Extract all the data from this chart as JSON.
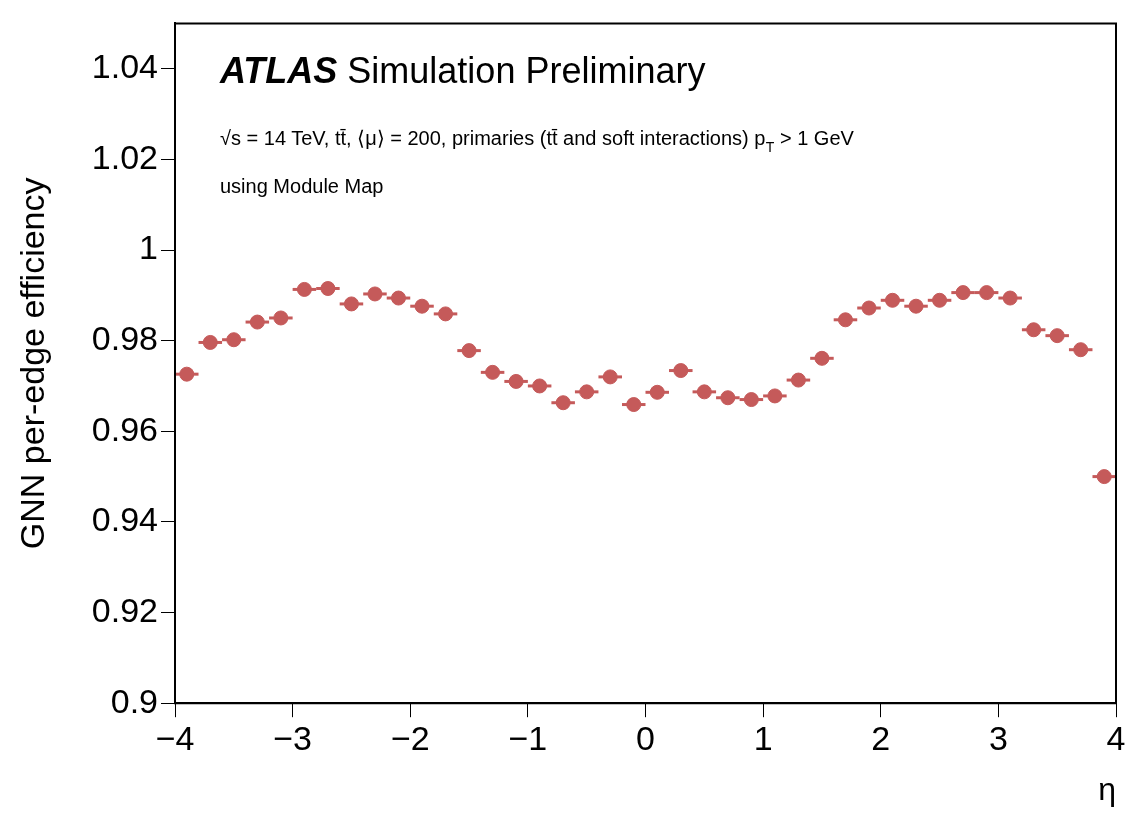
{
  "chart_data": {
    "type": "scatter",
    "title": "ATLAS",
    "subtitle": "Simulation Preliminary",
    "annotations": [
      "√s = 14 TeV, tt̄, ⟨μ⟩ = 200, primaries (tt̄ and soft interactions) p$_{T}$ > 1 GeV",
      "using Module Map"
    ],
    "xlabel": "η",
    "ylabel": "GNN per-edge efficiency",
    "x": [
      -3.9,
      -3.7,
      -3.5,
      -3.3,
      -3.1,
      -2.9,
      -2.7,
      -2.5,
      -2.3,
      -2.1,
      -1.9,
      -1.7,
      -1.5,
      -1.3,
      -1.1,
      -0.9,
      -0.7,
      -0.5,
      -0.3,
      -0.1,
      0.1,
      0.3,
      0.5,
      0.7,
      0.9,
      1.1,
      1.3,
      1.5,
      1.7,
      1.9,
      2.1,
      2.3,
      2.5,
      2.7,
      2.9,
      3.1,
      3.3,
      3.5,
      3.7,
      3.9
    ],
    "series": [
      {
        "color": "#c55a5a",
        "values": [
          0.9726,
          0.9796,
          0.9802,
          0.9841,
          0.985,
          0.9913,
          0.9915,
          0.9881,
          0.9903,
          0.9894,
          0.9876,
          0.9859,
          0.9778,
          0.973,
          0.971,
          0.97,
          0.9663,
          0.9687,
          0.972,
          0.9659,
          0.9686,
          0.9734,
          0.9687,
          0.9674,
          0.967,
          0.9678,
          0.9713,
          0.9761,
          0.9846,
          0.9872,
          0.9889,
          0.9876,
          0.9889,
          0.9906,
          0.9906,
          0.9894,
          0.9824,
          0.9811,
          0.978,
          0.95
        ],
        "xerrors": [
          0.1,
          0.1,
          0.1,
          0.1,
          0.1,
          0.1,
          0.1,
          0.1,
          0.1,
          0.1,
          0.1,
          0.1,
          0.1,
          0.1,
          0.1,
          0.1,
          0.1,
          0.1,
          0.1,
          0.1,
          0.1,
          0.1,
          0.1,
          0.1,
          0.1,
          0.1,
          0.1,
          0.1,
          0.1,
          0.1,
          0.1,
          0.1,
          0.1,
          0.1,
          0.1,
          0.1,
          0.1,
          0.1,
          0.1,
          0.1
        ]
      }
    ],
    "xlim": [
      -4,
      4
    ],
    "ylim": [
      0.9,
      1.05
    ],
    "xticks": [
      {
        "value": -4,
        "label": "−4"
      },
      {
        "value": -3,
        "label": "−3"
      },
      {
        "value": -2,
        "label": "−2"
      },
      {
        "value": -1,
        "label": "−1"
      },
      0,
      1,
      2,
      3,
      4
    ],
    "yticks": [
      {
        "value": 0.9,
        "label": "0.9"
      },
      0.92,
      0.94,
      0.96,
      0.98,
      {
        "value": 1,
        "label": "1"
      },
      1.02,
      1.04
    ],
    "marker": "circle",
    "grid": false,
    "legend": false
  }
}
